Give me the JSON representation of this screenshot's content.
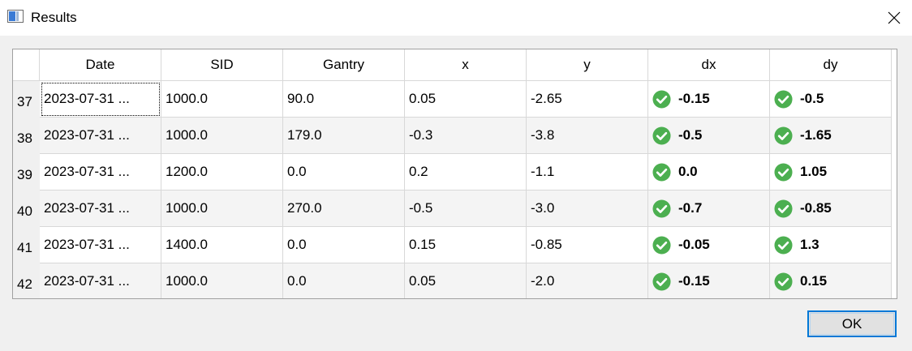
{
  "window": {
    "title": "Results",
    "icon": "app-window-icon",
    "close_icon": "close-icon"
  },
  "table": {
    "columns": [
      "Date",
      "SID",
      "Gantry",
      "x",
      "y",
      "dx",
      "dy"
    ],
    "status_icon": "check-circle-icon",
    "status_color": "#4caf50",
    "rows": [
      {
        "index": "37",
        "cells": [
          "2023-07-31 ...",
          "1000.0",
          "90.0",
          "0.05",
          "-2.65",
          "-0.15",
          "-0.5"
        ]
      },
      {
        "index": "38",
        "cells": [
          "2023-07-31 ...",
          "1000.0",
          "179.0",
          "-0.3",
          "-3.8",
          "-0.5",
          "-1.65"
        ]
      },
      {
        "index": "39",
        "cells": [
          "2023-07-31 ...",
          "1200.0",
          "0.0",
          "0.2",
          "-1.1",
          "0.0",
          "1.05"
        ]
      },
      {
        "index": "40",
        "cells": [
          "2023-07-31 ...",
          "1000.0",
          "270.0",
          "-0.5",
          "-3.0",
          "-0.7",
          "-0.85"
        ]
      },
      {
        "index": "41",
        "cells": [
          "2023-07-31 ...",
          "1400.0",
          "0.0",
          "0.15",
          "-0.85",
          "-0.05",
          "1.3"
        ]
      },
      {
        "index": "42",
        "cells": [
          "2023-07-31 ...",
          "1000.0",
          "0.0",
          "0.05",
          "-2.0",
          "-0.15",
          "0.15"
        ]
      }
    ]
  },
  "buttons": {
    "ok_label": "OK"
  },
  "colors": {
    "focus_border": "#0078d7",
    "window_bg": "#f0f0f0",
    "alt_row_bg": "#f4f4f4"
  }
}
